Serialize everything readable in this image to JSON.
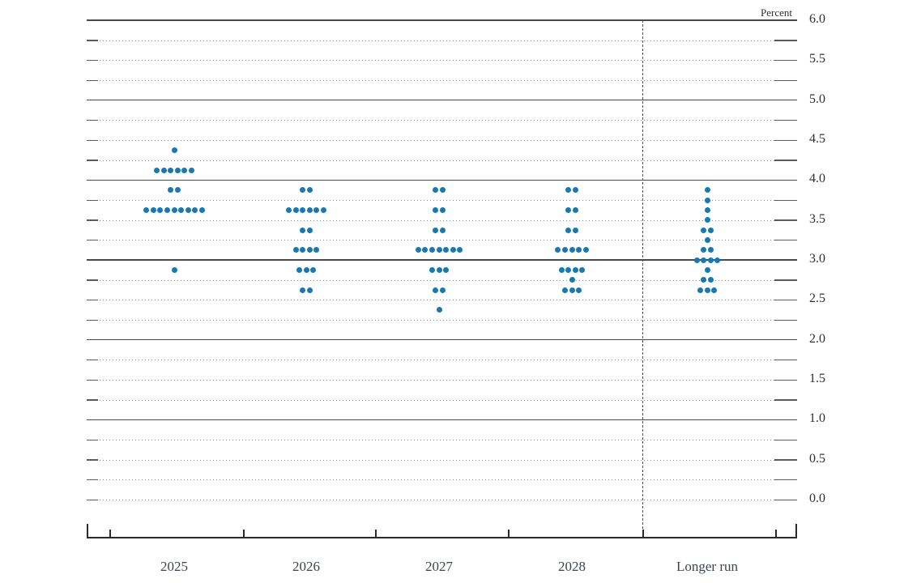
{
  "chart_data": {
    "type": "scatter",
    "subtype": "fomc-dot-plot",
    "title": "",
    "unit_label": "Percent",
    "xlabel": "",
    "ylabel": "Percent",
    "ylim": [
      0.0,
      6.0
    ],
    "grid_step": 0.25,
    "gridline_style": "dotted quarters, solid dark lines at 1.0 through 6.0",
    "legend": "none",
    "dot_color": "#1878b0",
    "separator": "vertical dashed line between 2028 and Longer run",
    "categories": [
      "2025",
      "2026",
      "2027",
      "2028",
      "Longer run"
    ],
    "ytick_labels": [
      "6.0",
      "5.5",
      "5.0",
      "4.5",
      "4.0",
      "3.5",
      "3.0",
      "2.5",
      "2.0",
      "1.5",
      "1.0",
      "0.5",
      "0.0"
    ],
    "series": [
      {
        "name": "2025",
        "dots": [
          {
            "value": 4.375,
            "count": 1
          },
          {
            "value": 4.125,
            "count": 6
          },
          {
            "value": 3.875,
            "count": 2
          },
          {
            "value": 3.625,
            "count": 9
          },
          {
            "value": 2.875,
            "count": 1
          }
        ]
      },
      {
        "name": "2026",
        "dots": [
          {
            "value": 3.875,
            "count": 2
          },
          {
            "value": 3.625,
            "count": 6
          },
          {
            "value": 3.375,
            "count": 2
          },
          {
            "value": 3.125,
            "count": 4
          },
          {
            "value": 2.875,
            "count": 3
          },
          {
            "value": 2.625,
            "count": 2
          }
        ]
      },
      {
        "name": "2027",
        "dots": [
          {
            "value": 3.875,
            "count": 2
          },
          {
            "value": 3.625,
            "count": 2
          },
          {
            "value": 3.375,
            "count": 2
          },
          {
            "value": 3.125,
            "count": 7
          },
          {
            "value": 2.875,
            "count": 3
          },
          {
            "value": 2.625,
            "count": 2
          },
          {
            "value": 2.375,
            "count": 1
          }
        ]
      },
      {
        "name": "2028",
        "dots": [
          {
            "value": 3.875,
            "count": 2
          },
          {
            "value": 3.625,
            "count": 2
          },
          {
            "value": 3.375,
            "count": 2
          },
          {
            "value": 3.125,
            "count": 5
          },
          {
            "value": 2.875,
            "count": 4
          },
          {
            "value": 2.75,
            "count": 1
          },
          {
            "value": 2.625,
            "count": 3
          }
        ]
      },
      {
        "name": "Longer run",
        "dots": [
          {
            "value": 3.875,
            "count": 1
          },
          {
            "value": 3.75,
            "count": 1
          },
          {
            "value": 3.625,
            "count": 1
          },
          {
            "value": 3.5,
            "count": 1
          },
          {
            "value": 3.375,
            "count": 2
          },
          {
            "value": 3.25,
            "count": 1
          },
          {
            "value": 3.125,
            "count": 2
          },
          {
            "value": 3.0,
            "count": 4
          },
          {
            "value": 2.875,
            "count": 1
          },
          {
            "value": 2.75,
            "count": 2
          },
          {
            "value": 2.625,
            "count": 3
          }
        ]
      }
    ]
  }
}
